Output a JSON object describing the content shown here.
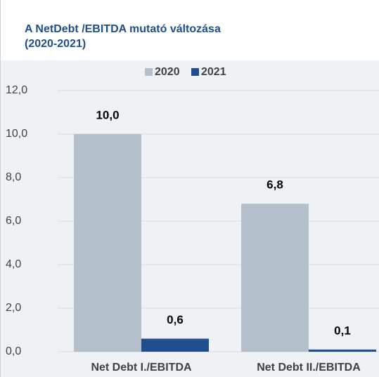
{
  "chart_data": {
    "type": "bar",
    "title": "A NetDebt /EBITDA mutató változása",
    "subtitle": "(2020-2021)",
    "categories": [
      "Net Debt I./EBITDA",
      "Net Debt II./EBITDA"
    ],
    "series": [
      {
        "name": "2020",
        "color": "#b4bfcc",
        "values": [
          10.0,
          6.8
        ],
        "value_labels": [
          "10,0",
          "6,8"
        ]
      },
      {
        "name": "2021",
        "color": "#1f4e8f",
        "values": [
          0.6,
          0.1
        ],
        "value_labels": [
          "0,6",
          "0,1"
        ]
      }
    ],
    "ylim": [
      0,
      12
    ],
    "yticks": [
      {
        "value": 0,
        "label": "0,0"
      },
      {
        "value": 2,
        "label": "2,0"
      },
      {
        "value": 4,
        "label": "4,0"
      },
      {
        "value": 6,
        "label": "6,0"
      },
      {
        "value": 8,
        "label": "8,0"
      },
      {
        "value": 10,
        "label": "10,0"
      },
      {
        "value": 12,
        "label": "12,0"
      }
    ],
    "grid": true
  }
}
